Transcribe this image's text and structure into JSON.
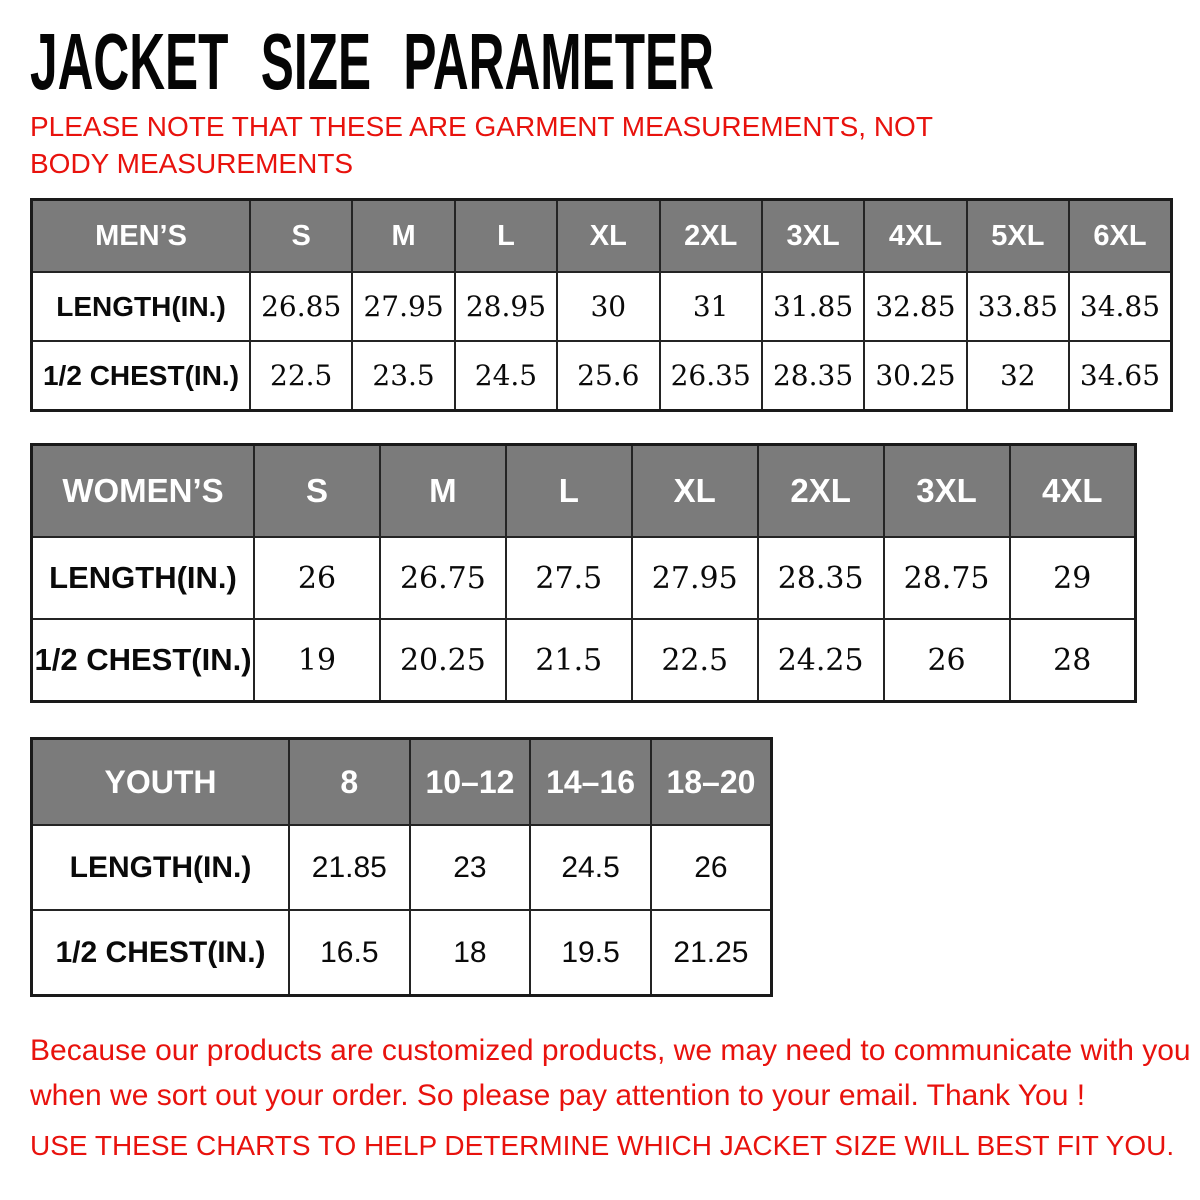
{
  "page": {
    "title": "JACKET SIZE PARAMETER",
    "note": "PLEASE NOTE THAT THESE ARE GARMENT MEASUREMENTS, NOT BODY MEASUREMENTS",
    "footer_paragraph": "Because our products are customized products, we may need to communicate with you when we sort out your order. So please pay attention to your email. Thank You !",
    "footer_usage_line": "USE THESE CHARTS TO HELP DETERMINE WHICH JACKET SIZE WILL BEST FIT YOU."
  },
  "colors": {
    "accent_red": "#e8120d",
    "header_gray": "#7b7b7b",
    "border_dark": "#242424",
    "text_black": "#050505"
  },
  "tables": [
    {
      "name": "mens",
      "header_label": "MEN’S",
      "sizes": [
        "S",
        "M",
        "L",
        "XL",
        "2XL",
        "3XL",
        "4XL",
        "5XL",
        "6XL"
      ],
      "rows": [
        {
          "label": "LENGTH(IN.)",
          "values": [
            "26.85",
            "27.95",
            "28.95",
            "30",
            "31",
            "31.85",
            "32.85",
            "33.85",
            "34.85"
          ]
        },
        {
          "label": "1/2 CHEST(IN.)",
          "values": [
            "22.5",
            "23.5",
            "24.5",
            "25.6",
            "26.35",
            "28.35",
            "30.25",
            "32",
            "34.65"
          ]
        }
      ]
    },
    {
      "name": "womens",
      "header_label": "WOMEN’S",
      "sizes": [
        "S",
        "M",
        "L",
        "XL",
        "2XL",
        "3XL",
        "4XL"
      ],
      "rows": [
        {
          "label": "LENGTH(IN.)",
          "values": [
            "26",
            "26.75",
            "27.5",
            "27.95",
            "28.35",
            "28.75",
            "29"
          ]
        },
        {
          "label": "1/2 CHEST(IN.)",
          "values": [
            "19",
            "20.25",
            "21.5",
            "22.5",
            "24.25",
            "26",
            "28"
          ]
        }
      ]
    },
    {
      "name": "youth",
      "header_label": "YOUTH",
      "sizes": [
        "8",
        "10–12",
        "14–16",
        "18–20"
      ],
      "rows": [
        {
          "label": "LENGTH(IN.)",
          "values": [
            "21.85",
            "23",
            "24.5",
            "26"
          ]
        },
        {
          "label": "1/2 CHEST(IN.)",
          "values": [
            "16.5",
            "18",
            "19.5",
            "21.25"
          ]
        }
      ]
    }
  ]
}
